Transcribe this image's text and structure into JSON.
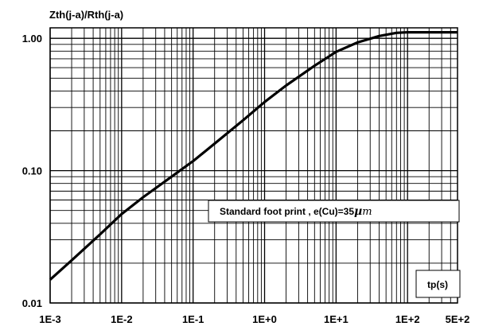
{
  "chart_data": {
    "type": "line",
    "title": "",
    "ylabel": "Zth(j-a)/Rth(j-a)",
    "xlabel": "tp(s)",
    "x_scale": "log",
    "y_scale": "log",
    "xlim": [
      0.001,
      500
    ],
    "ylim": [
      0.01,
      1.2
    ],
    "grid": true,
    "x_ticks": [
      {
        "value": 0.001,
        "label": "1E-3"
      },
      {
        "value": 0.01,
        "label": "1E-2"
      },
      {
        "value": 0.1,
        "label": "1E-1"
      },
      {
        "value": 1,
        "label": "1E+0"
      },
      {
        "value": 10,
        "label": "1E+1"
      },
      {
        "value": 100,
        "label": "1E+2"
      },
      {
        "value": 500,
        "label": "5E+2"
      }
    ],
    "y_ticks": [
      {
        "value": 0.01,
        "label": "0.01"
      },
      {
        "value": 0.1,
        "label": "0.10"
      },
      {
        "value": 1,
        "label": "1.00"
      }
    ],
    "annotation": "Standard foot print , e(Cu)=35",
    "annotation_unit": "µm",
    "annotation_symbol_mu": "µ",
    "annotation_symbol_m": "m",
    "series": [
      {
        "values_x": [
          0.001,
          0.002,
          0.005,
          0.01,
          0.02,
          0.05,
          0.1,
          0.2,
          0.5,
          1,
          2,
          5,
          10,
          20,
          40,
          70,
          100,
          200,
          500
        ],
        "values_y": [
          0.015,
          0.021,
          0.033,
          0.047,
          0.063,
          0.09,
          0.118,
          0.16,
          0.24,
          0.33,
          0.44,
          0.62,
          0.79,
          0.93,
          1.04,
          1.1,
          1.11,
          1.11,
          1.11
        ],
        "color": "#000000"
      }
    ]
  }
}
